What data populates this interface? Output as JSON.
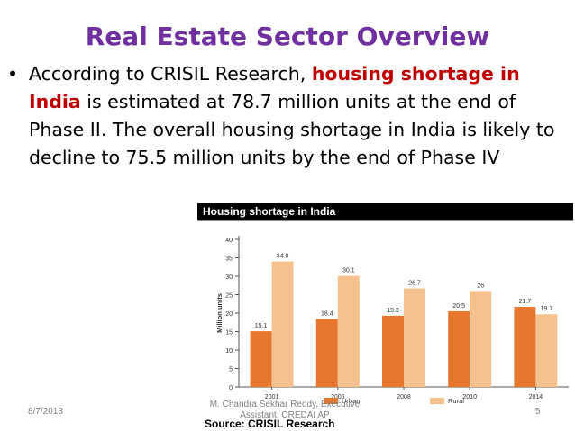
{
  "slide": {
    "title": "Real Estate Sector Overview",
    "bullet_symbol": "•",
    "bullet": {
      "part1": "According to CRISIL Research, ",
      "highlight": "housing shortage in India",
      "part2": " is estimated at 78.7 million units at the end of Phase II. The overall housing shortage in India is likely to decline to 75.5 million units by the end of Phase IV"
    }
  },
  "chart_data": {
    "type": "bar",
    "title": "Housing shortage in India",
    "categories": [
      "2001",
      "2005",
      "2008",
      "2010",
      "2014"
    ],
    "series": [
      {
        "name": "Urban",
        "values": [
          15.1,
          18.4,
          19.3,
          20.5,
          21.7
        ],
        "color": "#e8772e"
      },
      {
        "name": "Rural",
        "values": [
          34.0,
          30.1,
          26.7,
          26.0,
          19.7
        ],
        "color": "#f5c28f"
      }
    ],
    "value_labels": [
      [
        "15.1",
        "18.4",
        "19.3",
        "20.5",
        "21.7"
      ],
      [
        "34.0",
        "30.1",
        "26.7",
        "26",
        "19.7"
      ]
    ],
    "ylabel": "Million units",
    "yticks": [
      "0",
      "5",
      "10",
      "15",
      "20",
      "25",
      "30",
      "35",
      "40"
    ],
    "ylim": [
      0,
      40
    ],
    "grid": false,
    "legend_position": "bottom",
    "source": "Source: CRISIL Research"
  },
  "footer": {
    "date": "8/7/2013",
    "author": "M. Chandra Sekhar Reddy, Executive Assistant, CREDAI AP",
    "page": "5"
  }
}
